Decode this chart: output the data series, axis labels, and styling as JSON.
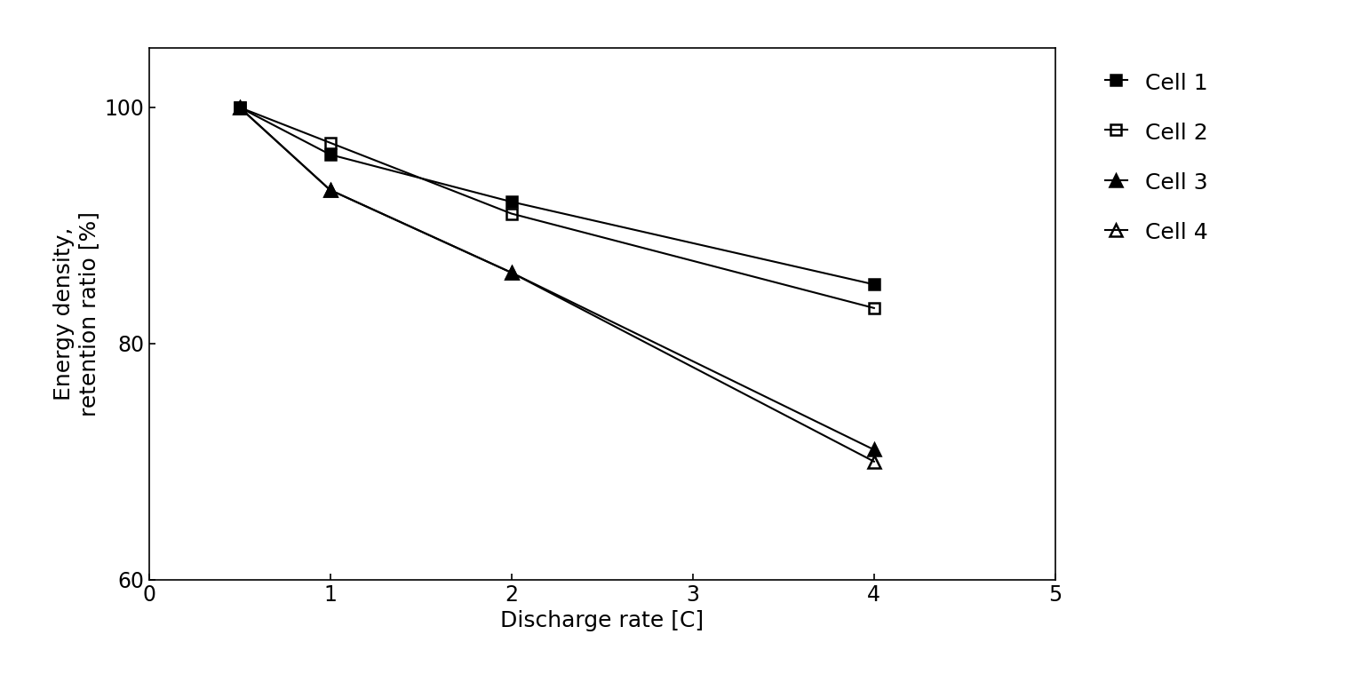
{
  "series": [
    {
      "label": "Cell 1",
      "x": [
        0.5,
        1,
        2,
        4
      ],
      "y": [
        100,
        96,
        92,
        85
      ],
      "marker": "s",
      "fillstyle": "full",
      "color": "black",
      "markersize": 9,
      "linewidth": 1.5
    },
    {
      "label": "Cell 2",
      "x": [
        0.5,
        1,
        2,
        4
      ],
      "y": [
        100,
        97,
        91,
        83
      ],
      "marker": "s",
      "fillstyle": "none",
      "color": "black",
      "markersize": 9,
      "linewidth": 1.5
    },
    {
      "label": "Cell 3",
      "x": [
        0.5,
        1,
        2,
        4
      ],
      "y": [
        100,
        93,
        86,
        71
      ],
      "marker": "^",
      "fillstyle": "full",
      "color": "black",
      "markersize": 10,
      "linewidth": 1.5
    },
    {
      "label": "Cell 4",
      "x": [
        0.5,
        1,
        2,
        4
      ],
      "y": [
        100,
        93,
        86,
        70
      ],
      "marker": "^",
      "fillstyle": "none",
      "color": "black",
      "markersize": 10,
      "linewidth": 1.5
    }
  ],
  "xlabel": "Discharge rate [C]",
  "ylabel": "Energy density,\nretention ratio [%]",
  "xlim": [
    0,
    5
  ],
  "ylim": [
    60,
    105
  ],
  "xticks": [
    0,
    1,
    2,
    3,
    4,
    5
  ],
  "yticks": [
    60,
    80,
    100
  ],
  "background_color": "#ffffff",
  "legend_fontsize": 18,
  "axis_label_fontsize": 18,
  "tick_fontsize": 17,
  "fig_width": 15.23,
  "fig_height": 7.77,
  "dpi": 100
}
